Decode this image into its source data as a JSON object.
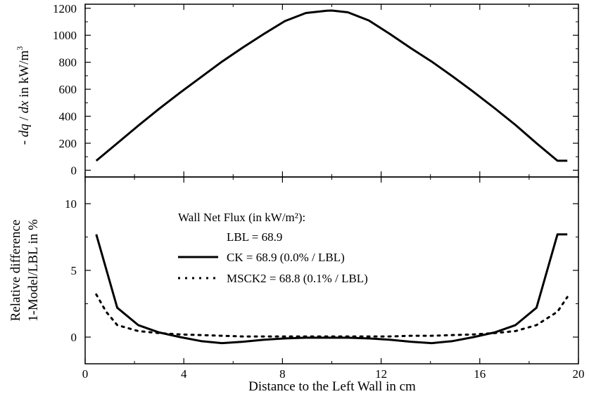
{
  "chart_data": [
    {
      "type": "line",
      "ylabel": {
        "prefix": "- ",
        "dq": "dq",
        "mid": " / ",
        "dx": "dx",
        "suffix": " in kW/m",
        "sup": "3"
      },
      "xlim": [
        0,
        20
      ],
      "ylim": [
        -50,
        1230
      ],
      "yticks": [
        0,
        200,
        400,
        600,
        800,
        1000,
        1200
      ],
      "xticks": [
        0,
        4,
        8,
        12,
        16,
        20
      ],
      "series": [
        {
          "style": "solid",
          "x": [
            0.45,
            1.3,
            2.15,
            3.0,
            3.85,
            4.7,
            5.55,
            6.4,
            7.25,
            8.1,
            8.95,
            9.8,
            10.0,
            10.65,
            11.5,
            12.35,
            13.2,
            14.05,
            14.9,
            15.75,
            16.6,
            17.45,
            18.3,
            19.15,
            19.55
          ],
          "y": [
            70,
            200,
            330,
            455,
            575,
            690,
            805,
            910,
            1010,
            1105,
            1165,
            1182,
            1183,
            1170,
            1110,
            1010,
            905,
            805,
            695,
            580,
            460,
            335,
            200,
            70,
            70
          ]
        }
      ]
    },
    {
      "type": "line",
      "ylabel": [
        "Relative difference",
        "1-Model/LBL in %"
      ],
      "xlabel": "Distance to the Left Wall in cm",
      "xlim": [
        0,
        20
      ],
      "ylim": [
        -2,
        12
      ],
      "yticks": [
        0,
        5,
        10
      ],
      "xticks": [
        0,
        4,
        8,
        12,
        16,
        20
      ],
      "legend": {
        "title": "Wall Net Flux (in kW/m²):",
        "entries": [
          {
            "label": "LBL = 68.9",
            "style": "none"
          },
          {
            "label": "CK = 68.9 (0.0% / LBL)",
            "style": "solid"
          },
          {
            "label": "MSCK2 = 68.8 (0.1% / LBL)",
            "style": "dotted"
          }
        ]
      },
      "series": [
        {
          "style": "solid",
          "x": [
            0.45,
            1.3,
            2.15,
            3.0,
            3.85,
            4.7,
            5.55,
            6.4,
            7.25,
            8.1,
            8.95,
            9.8,
            10.65,
            11.5,
            12.35,
            13.2,
            14.05,
            14.9,
            15.75,
            16.6,
            17.45,
            18.3,
            19.15,
            19.55
          ],
          "y": [
            7.7,
            2.2,
            0.9,
            0.35,
            0.0,
            -0.3,
            -0.45,
            -0.35,
            -0.2,
            -0.1,
            -0.05,
            -0.05,
            -0.05,
            -0.1,
            -0.2,
            -0.35,
            -0.45,
            -0.3,
            0.0,
            0.35,
            0.9,
            2.2,
            7.7,
            7.7
          ]
        },
        {
          "style": "dotted",
          "x": [
            0.45,
            0.85,
            1.3,
            2.15,
            3.0,
            3.85,
            4.7,
            5.55,
            6.4,
            7.25,
            8.1,
            8.95,
            9.8,
            10.65,
            11.5,
            12.35,
            13.2,
            14.05,
            14.9,
            15.75,
            16.6,
            17.45,
            18.3,
            19.15,
            19.55
          ],
          "y": [
            3.2,
            1.9,
            0.9,
            0.45,
            0.3,
            0.2,
            0.15,
            0.1,
            0.05,
            0.05,
            0.05,
            0.05,
            0.05,
            0.05,
            0.05,
            0.05,
            0.1,
            0.1,
            0.15,
            0.2,
            0.3,
            0.45,
            0.9,
            1.9,
            3.0
          ]
        }
      ]
    }
  ]
}
